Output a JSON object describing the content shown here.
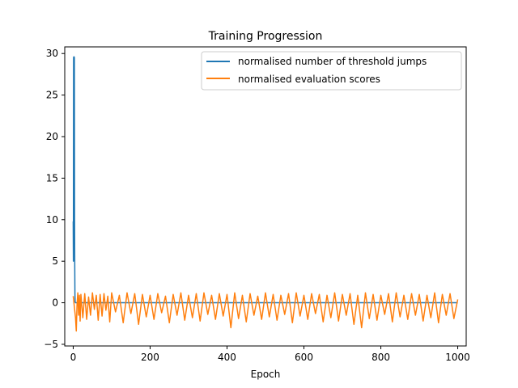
{
  "chart_data": {
    "type": "line",
    "title": "Training Progression",
    "xlabel": "Epoch",
    "ylabel": "",
    "xlim": [
      -22,
      1022
    ],
    "ylim": [
      -5.2,
      30.8
    ],
    "xticks": [
      0,
      200,
      400,
      600,
      800,
      1000
    ],
    "yticks": [
      -5,
      0,
      5,
      10,
      15,
      20,
      25,
      30
    ],
    "grid": false,
    "legend_position": "top-right",
    "series": [
      {
        "name": "normalised number of threshold jumps",
        "color": "#1f77b4",
        "x": [
          0,
          0.5,
          1,
          1.5,
          2,
          2.5,
          3,
          3.5,
          4,
          4.5,
          5,
          6,
          8,
          10,
          20,
          50,
          100,
          200,
          300,
          400,
          500,
          600,
          700,
          800,
          900,
          1000
        ],
        "y": [
          9.8,
          5.0,
          29.5,
          29.6,
          29.4,
          29.6,
          29.5,
          10.0,
          4.9,
          1.0,
          0.1,
          0.0,
          0.0,
          0.0,
          0.0,
          0.0,
          0.0,
          0.0,
          0.0,
          0.0,
          0.0,
          0.0,
          0.0,
          0.0,
          0.0,
          0.0
        ]
      },
      {
        "name": "normalised evaluation scores",
        "color": "#ff7f0e",
        "x": [
          0,
          3,
          6,
          8,
          10,
          12,
          14,
          16,
          18,
          20,
          25,
          30,
          35,
          40,
          45,
          50,
          55,
          60,
          65,
          70,
          75,
          80,
          85,
          90,
          95,
          100,
          110,
          120,
          130,
          140,
          150,
          160,
          170,
          180,
          190,
          200,
          210,
          220,
          230,
          240,
          250,
          260,
          270,
          280,
          290,
          300,
          310,
          320,
          330,
          340,
          350,
          360,
          370,
          380,
          390,
          400,
          410,
          420,
          430,
          440,
          450,
          460,
          470,
          480,
          490,
          500,
          510,
          520,
          530,
          540,
          550,
          560,
          570,
          580,
          590,
          600,
          610,
          620,
          630,
          640,
          650,
          660,
          670,
          680,
          690,
          700,
          710,
          720,
          730,
          740,
          750,
          760,
          770,
          780,
          790,
          800,
          810,
          820,
          830,
          840,
          850,
          860,
          870,
          880,
          890,
          900,
          910,
          920,
          930,
          940,
          950,
          960,
          970,
          980,
          990,
          1000
        ],
        "y": [
          0.8,
          -0.5,
          -1.8,
          -3.4,
          -0.2,
          1.2,
          -1.5,
          0.9,
          -2.2,
          1.0,
          -1.8,
          1.1,
          -2.0,
          0.7,
          -1.5,
          1.2,
          -0.8,
          0.9,
          -2.1,
          1.0,
          -1.6,
          1.1,
          -0.9,
          0.8,
          -2.3,
          1.2,
          -1.1,
          0.9,
          -2.4,
          1.2,
          -1.3,
          1.1,
          -2.6,
          1.0,
          -1.7,
          0.9,
          -2.0,
          1.1,
          -1.2,
          0.8,
          -2.4,
          1.0,
          -1.5,
          1.2,
          -2.1,
          0.9,
          -1.8,
          1.1,
          -2.2,
          1.2,
          -1.4,
          0.9,
          -2.0,
          1.1,
          -1.6,
          1.0,
          -3.0,
          1.2,
          -1.9,
          0.9,
          -2.3,
          1.1,
          -1.5,
          0.8,
          -2.0,
          1.2,
          -1.7,
          1.0,
          -2.1,
          0.9,
          -1.4,
          1.1,
          -2.4,
          1.2,
          -1.6,
          0.9,
          -2.0,
          1.1,
          -1.3,
          1.0,
          -2.3,
          0.9,
          -1.8,
          1.2,
          -2.2,
          1.0,
          -1.5,
          1.1,
          -2.6,
          0.9,
          -3.0,
          1.2,
          -1.9,
          1.0,
          -2.1,
          0.9,
          -1.4,
          1.1,
          -2.3,
          1.2,
          -1.7,
          0.9,
          -2.0,
          1.1,
          -1.5,
          1.0,
          -2.2,
          0.9,
          -1.8,
          1.2,
          -2.4,
          1.0,
          -1.5,
          1.1,
          -1.9,
          0.4
        ]
      }
    ]
  }
}
